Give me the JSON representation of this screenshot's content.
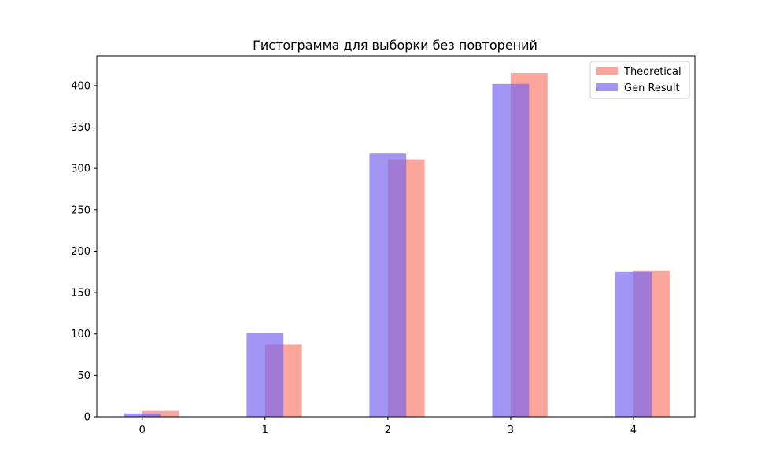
{
  "chart_data": {
    "type": "bar",
    "title": "Гистограмма для выборки без повторений",
    "xlabel": "",
    "ylabel": "",
    "categories": [
      "0",
      "1",
      "2",
      "3",
      "4"
    ],
    "x": [
      0,
      1,
      2,
      3,
      4
    ],
    "series": [
      {
        "name": "Theoretical",
        "values": [
          7,
          87,
          311,
          415,
          176
        ],
        "color": "#fa8072",
        "opacity": 0.7
      },
      {
        "name": "Gen Result",
        "values": [
          4,
          101,
          318,
          402,
          175
        ],
        "color": "#7b68ee",
        "opacity": 0.7
      }
    ],
    "yticks": [
      0,
      50,
      100,
      150,
      200,
      250,
      300,
      350,
      400
    ],
    "ytick_labels": [
      "0",
      "50",
      "100",
      "150",
      "200",
      "250",
      "300",
      "350",
      "400"
    ],
    "ylim": [
      0,
      436
    ],
    "xlim": [
      -0.37,
      4.5
    ],
    "grid": false,
    "legend_position": "top-right"
  }
}
